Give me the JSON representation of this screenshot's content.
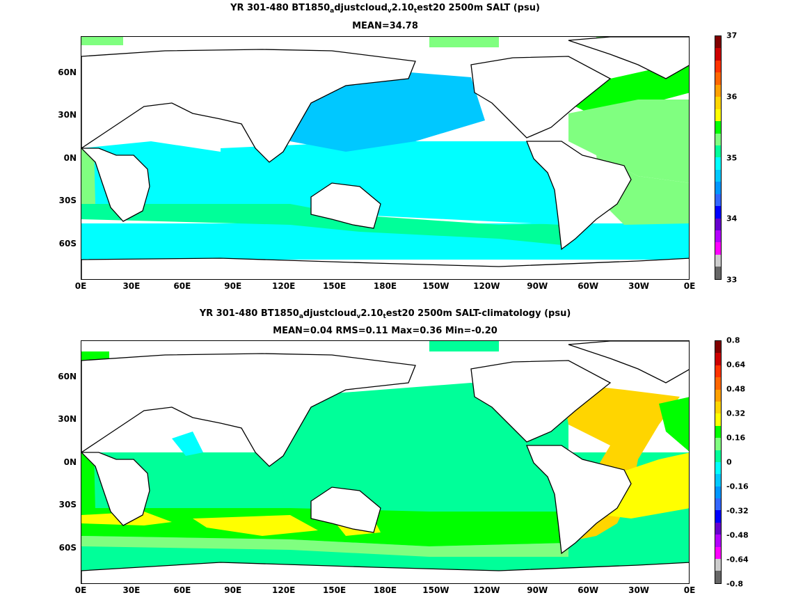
{
  "panels": [
    {
      "title_parts": [
        "YR 301-480 BT1850",
        "a",
        "djustcloud",
        "v",
        "2.10",
        "t",
        "est20 2500m SALT (psu)"
      ],
      "stats": "MEAN=34.78",
      "colorbar_labels": [
        "37",
        "36",
        "35",
        "34",
        "33"
      ],
      "colorbar_colors": [
        "#800000",
        "#cc0000",
        "#ff3300",
        "#ff6600",
        "#ffa000",
        "#ffd500",
        "#ffff00",
        "#00ff00",
        "#80ff80",
        "#00ff99",
        "#00ffff",
        "#00c8ff",
        "#0096ff",
        "#3366ff",
        "#0000ff",
        "#6600cc",
        "#b300ff",
        "#ff00ff",
        "#cccccc",
        "#666666"
      ]
    },
    {
      "title_parts": [
        "YR 301-480 BT1850",
        "a",
        "djustcloud",
        "v",
        "2.10",
        "t",
        "est20 2500m SALT-climatology (psu)"
      ],
      "stats": "MEAN=0.04   RMS=0.11   Max=0.36   Min=-0.20",
      "colorbar_labels": [
        "0.8",
        "0.64",
        "0.48",
        "0.32",
        "0.16",
        "0",
        "-0.16",
        "-0.32",
        "-0.48",
        "-0.64",
        "-0.8"
      ],
      "colorbar_colors": [
        "#800000",
        "#cc0000",
        "#ff3300",
        "#ff6600",
        "#ffa000",
        "#ffd500",
        "#ffff00",
        "#00ff00",
        "#80ff80",
        "#00ff99",
        "#00ffff",
        "#00c8ff",
        "#0096ff",
        "#3366ff",
        "#0000ff",
        "#6600cc",
        "#b300ff",
        "#ff00ff",
        "#cccccc",
        "#666666"
      ]
    }
  ],
  "x_ticks": [
    "0E",
    "30E",
    "60E",
    "90E",
    "120E",
    "150E",
    "180E",
    "150W",
    "120W",
    "90W",
    "60W",
    "30W",
    "0E"
  ],
  "y_ticks": [
    "60N",
    "30N",
    "0N",
    "30S",
    "60S"
  ]
}
